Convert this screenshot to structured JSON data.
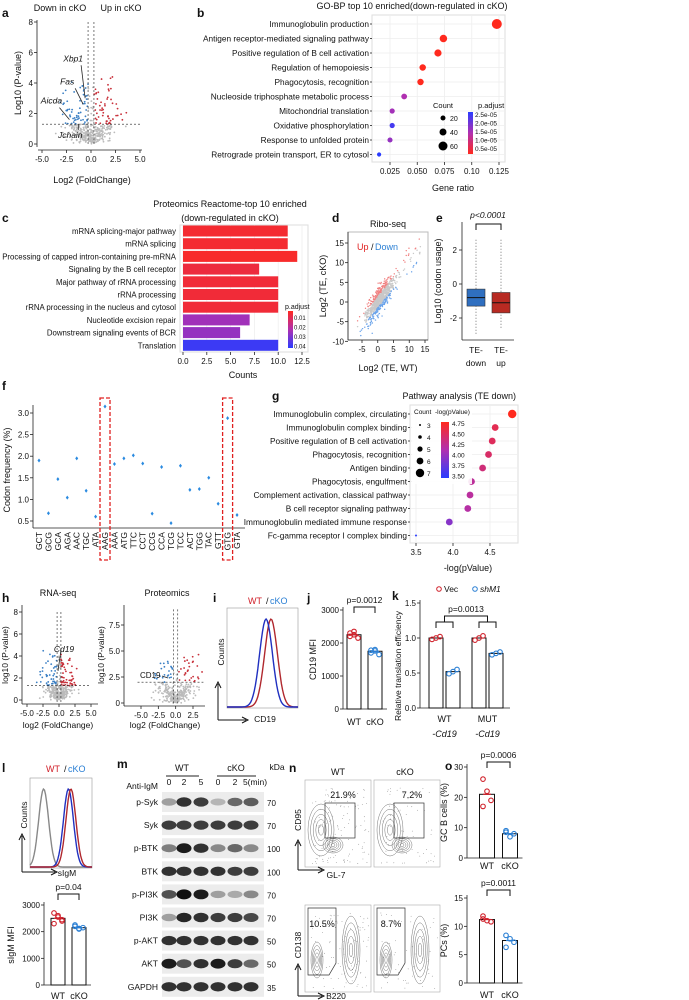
{
  "panel_labels": [
    "a",
    "b",
    "c",
    "d",
    "e",
    "f",
    "g",
    "h",
    "i",
    "j",
    "k",
    "l",
    "m",
    "n",
    "o"
  ],
  "colors": {
    "up": "#c8303a",
    "down": "#3a7fc4",
    "ns": "#bbbbbb",
    "wt": "#d0202a",
    "cko": "#2a7fd4",
    "scale_high": "#ff2a1e",
    "scale_mid": "#b030b0",
    "scale_low": "#2a3cff"
  },
  "chart_data": [
    {
      "panel": "a",
      "type": "scatter",
      "group_labels": [
        "Down in cKO",
        "Up in cKO"
      ],
      "xlabel": "Log2 (FoldChange)",
      "ylabel": "Log10 (P-value)",
      "xlim": [
        -5,
        5
      ],
      "ylim": [
        0,
        8
      ],
      "xticks": [
        "-5.0",
        "-2.5",
        "0.0",
        "2.5",
        "5.0"
      ],
      "yticks": [
        "0",
        "2",
        "4",
        "6",
        "8"
      ],
      "thresholds": {
        "log2fc": [
          -0.3,
          0.3
        ],
        "log10p": 1.3
      },
      "genes": [
        {
          "name": "Xbp1",
          "x": -0.6,
          "y": 3.0
        },
        {
          "name": "Fas",
          "x": -0.8,
          "y": 2.6
        },
        {
          "name": "Aicda",
          "x": -2.2,
          "y": 1.6
        },
        {
          "name": "Jchain",
          "x": -1.3,
          "y": 1.3
        }
      ]
    },
    {
      "panel": "b",
      "type": "scatter",
      "title": "GO-BP top 10 enriched(down-regulated in cKO)",
      "categories": [
        "Immunoglobulin production",
        "Antigen receptor-mediated signaling pathway",
        "Positive regulation of B cell activation",
        "Regulation of hemopoiesis",
        "Phagocytosis, recognition",
        "Nucleoside triphosphate metabolic process",
        "Mitochondrial translation",
        "Oxidative phosphorylation",
        "Response to unfolded protein",
        "Retrograde protein transport, ER to cytosol"
      ],
      "x": [
        0.123,
        0.074,
        0.069,
        0.055,
        0.053,
        0.038,
        0.027,
        0.027,
        0.025,
        0.015
      ],
      "count": [
        70,
        45,
        42,
        35,
        34,
        28,
        22,
        22,
        21,
        12
      ],
      "color_value": [
        3e-06,
        4e-06,
        4.5e-06,
        5e-06,
        5e-06,
        1.5e-05,
        1.6e-05,
        2.3e-05,
        1.7e-05,
        2.6e-05
      ],
      "xlabel": "Gene ratio",
      "xticks": [
        "0.025",
        "0.050",
        "0.075",
        "0.10",
        "0.125"
      ],
      "xlim": [
        0.01,
        0.13
      ],
      "legend": {
        "count_title": "Count",
        "count_levels": [
          "20",
          "40",
          "60"
        ],
        "color_title": "p.adjust",
        "color_ticks": [
          "2.5e-05",
          "2.0e-05",
          "1.5e-05",
          "1.0e-05",
          "0.5e-05"
        ]
      },
      "color_range": [
        5e-06,
        2.5e-05
      ]
    },
    {
      "panel": "c",
      "type": "bar",
      "title_lines": [
        "Proteomics Reactome-top 10 enriched",
        "(down-regulated in cKO)"
      ],
      "categories": [
        "mRNA splicing-major pathway",
        "mRNA splicing",
        "Processing of capped intron-containing pre-mRNA",
        "Signaling by the B cell receptor",
        "Major pathway of rRNA processing",
        "rRNA processing",
        "rRNA processing in the nucleus and cytosol",
        "Nucleotide excision repair",
        "Downstream signaling events of BCR",
        "Translation"
      ],
      "values": [
        11,
        11,
        12,
        8,
        10,
        10,
        10,
        7,
        6,
        10
      ],
      "p_adjust": [
        0.003,
        0.003,
        0.002,
        0.005,
        0.004,
        0.004,
        0.004,
        0.025,
        0.027,
        0.042
      ],
      "xlabel": "Counts",
      "xticks": [
        "0.0",
        "2.5",
        "5.0",
        "7.5",
        "10.0",
        "12.5"
      ],
      "xlim": [
        0,
        12.5
      ],
      "legend": {
        "title": "p.adjust",
        "ticks": [
          "0.01",
          "0.02",
          "0.03",
          "0.04"
        ]
      },
      "color_range": [
        0.0,
        0.045
      ]
    },
    {
      "panel": "d",
      "type": "scatter",
      "title": "Ribo-seq",
      "legend": [
        "Up",
        "/",
        "Down"
      ],
      "xlabel": "Log2 (TE, WT)",
      "ylabel": "Log2 (TE, cKO)",
      "xticks": [
        "-5",
        "0",
        "5",
        "10",
        "15"
      ],
      "yticks": [
        "-10",
        "-5",
        "0",
        "5",
        "10",
        "15"
      ],
      "xlim": [
        -7,
        16
      ],
      "ylim": [
        -10,
        17
      ]
    },
    {
      "panel": "e",
      "type": "box",
      "categories": [
        [
          "TE-",
          "down"
        ],
        [
          "TE-",
          "up"
        ]
      ],
      "ylabel": "Log10 (codon usage)",
      "yticks": [
        "-2",
        "0",
        "2"
      ],
      "annotation": "p<0.0001",
      "boxes": [
        {
          "min": -3.0,
          "q1": -1.3,
          "median": -0.8,
          "q3": -0.3,
          "max": 2.6,
          "color": "#2f6fc0"
        },
        {
          "min": -2.6,
          "q1": -1.7,
          "median": -1.1,
          "q3": -0.5,
          "max": 2.6,
          "color": "#b82a22"
        }
      ]
    },
    {
      "panel": "f",
      "type": "scatter",
      "ylabel": "Codon frequency (%)",
      "yticks": [
        "0.5",
        "1.0",
        "1.5",
        "2.0",
        "2.5",
        "3.0"
      ],
      "ylim": [
        0.3,
        3.2
      ],
      "categories": [
        "GCT",
        "GCG",
        "GCA",
        "AGA",
        "AAC",
        "TGC",
        "ATA",
        "AAG",
        "AAA",
        "ATG",
        "TTC",
        "CCT",
        "CCG",
        "CCA",
        "TCG",
        "TCC",
        "ACT",
        "TGG",
        "TAC",
        "GTT",
        "GTG",
        "GTA"
      ],
      "values": [
        1.9,
        0.68,
        1.47,
        1.04,
        1.95,
        1.2,
        0.6,
        3.15,
        1.82,
        1.95,
        2.02,
        1.83,
        0.67,
        1.75,
        0.45,
        1.78,
        1.22,
        1.24,
        1.5,
        0.9,
        2.88,
        0.64
      ],
      "highlighted": [
        "AAG",
        "GTG"
      ]
    },
    {
      "panel": "g",
      "type": "scatter",
      "title": "Pathway analysis (TE down)",
      "categories": [
        "Immunoglobulin complex, circulating",
        "Immunoglobulin complex binding",
        "Positive regulation of B cell activation",
        "Phagocytosis, recognition",
        "Antigen binding",
        "Phagocytosis, engulfment",
        "Complement activation, classical pathway",
        "B cell receptor signaling pathway",
        "Immunoglobulin mediated immune response",
        "Fc-gamma receptor I complex binding"
      ],
      "x": [
        4.8,
        4.57,
        4.53,
        4.48,
        4.4,
        4.25,
        4.23,
        4.2,
        3.95,
        3.5
      ],
      "count": [
        7,
        6,
        6,
        6,
        6,
        6,
        6,
        6,
        6,
        3
      ],
      "color_value": [
        4.8,
        4.57,
        4.53,
        4.48,
        4.4,
        4.25,
        4.23,
        4.2,
        3.95,
        3.5
      ],
      "xlabel": "-log(pValue)",
      "xticks": [
        "3.5",
        "4.0",
        "4.5"
      ],
      "legend": {
        "count_title": "Count",
        "count_levels": [
          "3",
          "4",
          "5",
          "6",
          "7"
        ],
        "color_title": "-log(pValue)",
        "color_ticks": [
          "4.75",
          "4.50",
          "4.25",
          "4.00",
          "3.75",
          "3.50"
        ]
      },
      "color_range": [
        4.8,
        3.5
      ]
    },
    {
      "panel": "h",
      "type": "scatter",
      "title": "RNA-seq",
      "xlabel": "log2 (FoldChange)",
      "ylabel": "log10 (P-value)",
      "xticks": [
        "-5.0",
        "-2.5",
        "0.0",
        "2.5",
        "5.0"
      ],
      "yticks": [
        "0",
        "2",
        "4",
        "6",
        "8"
      ],
      "xlim": [
        -5,
        5
      ],
      "ylim": [
        0,
        8
      ],
      "thresholds": {
        "log2fc": [
          -0.3,
          0.3
        ],
        "log10p": 1.3
      },
      "gene": "Cd19"
    },
    {
      "panel": "h",
      "type": "scatter",
      "title": "Proteomics",
      "xlabel": "log2 (FoldChange)",
      "ylabel": "log10 (P-value)",
      "xticks": [
        "-5.0",
        "-2.5",
        "0.0",
        "2.5"
      ],
      "yticks": [
        "0",
        "2.5",
        "5.0",
        "7.5"
      ],
      "xlim": [
        -5.5,
        4
      ],
      "ylim": [
        0,
        9
      ],
      "thresholds": {
        "log2fc": [
          -0.3,
          0.3
        ],
        "log10p": 2.0
      },
      "gene": "CD19"
    },
    {
      "panel": "i",
      "type": "line",
      "legend": [
        "WT",
        "/",
        "cKO"
      ],
      "xlabel": "CD19",
      "ylabel": "Counts",
      "series": [
        {
          "name": "WT",
          "mode": 0.62,
          "color": "#b0282e"
        },
        {
          "name": "cKO",
          "mode": 0.55,
          "color": "#2030c0"
        }
      ]
    },
    {
      "panel": "j",
      "type": "bar",
      "ylabel": "CD19 MFI",
      "categories": [
        "WT",
        "cKO"
      ],
      "values": [
        2250,
        1750
      ],
      "points": [
        [
          2200,
          2350,
          2150,
          2300,
          2250
        ],
        [
          1700,
          1800,
          1650,
          1780,
          1760
        ]
      ],
      "yticks": [
        "0",
        "1000",
        "2000",
        "3000"
      ],
      "ylim": [
        0,
        3000
      ],
      "p_value": "p=0.0012"
    },
    {
      "panel": "k",
      "type": "bar",
      "legend": [
        "Vec",
        "shM1"
      ],
      "ylabel": "Relative translation efficiency",
      "groups": [
        [
          "WT",
          "-Cd19"
        ],
        [
          "MUT",
          "-Cd19"
        ]
      ],
      "values": [
        [
          1.0,
          0.52
        ],
        [
          1.0,
          0.78
        ]
      ],
      "points": [
        [
          [
            0.98,
            1.0,
            1.02
          ],
          [
            0.49,
            0.52,
            0.55
          ]
        ],
        [
          [
            0.97,
            1.0,
            1.03
          ],
          [
            0.76,
            0.78,
            0.8
          ]
        ]
      ],
      "yticks": [
        "0.0",
        "0.5",
        "1.0",
        "1.5"
      ],
      "ylim": [
        0,
        1.5
      ],
      "p_value": "p=0.0013"
    },
    {
      "panel": "l",
      "type": "line",
      "legend": [
        "WT",
        "/",
        "cKO"
      ],
      "xlabel": "sIgM",
      "ylabel": "Counts",
      "series": [
        {
          "name": "isotype",
          "mode": 0.22,
          "color": "#888888"
        },
        {
          "name": "cKO",
          "mode": 0.62,
          "color": "#2030c0"
        },
        {
          "name": "WT",
          "mode": 0.66,
          "color": "#b0282e"
        }
      ]
    },
    {
      "panel": "l",
      "type": "bar",
      "ylabel": "sIgM MFI",
      "categories": [
        "WT",
        "cKO"
      ],
      "values": [
        2500,
        2150
      ],
      "points": [
        [
          2700,
          2550,
          2450,
          2300,
          2600,
          2400
        ],
        [
          2200,
          2100,
          2150,
          2250,
          2120
        ]
      ],
      "yticks": [
        "0",
        "1000",
        "2000",
        "3000"
      ],
      "ylim": [
        0,
        3000
      ],
      "p_value": "p=0.04"
    },
    {
      "panel": "m",
      "type": "table",
      "conditions": [
        "WT",
        "cKO"
      ],
      "treatment": "Anti-IgM",
      "timepoints": [
        "0",
        "2",
        "5",
        "0",
        "2",
        "5(min)"
      ],
      "kda_label": "kDa",
      "rows": [
        {
          "protein": "p-Syk",
          "kda": "70",
          "intensity": [
            0.35,
            0.85,
            0.8,
            0.25,
            0.6,
            0.65
          ]
        },
        {
          "protein": "Syk",
          "kda": "70",
          "intensity": [
            0.8,
            0.8,
            0.8,
            0.8,
            0.8,
            0.8
          ]
        },
        {
          "protein": "p-BTK",
          "kda": "100",
          "intensity": [
            0.5,
            0.95,
            0.85,
            0.45,
            0.6,
            0.45
          ]
        },
        {
          "protein": "BTK",
          "kda": "100",
          "intensity": [
            0.85,
            0.85,
            0.85,
            0.85,
            0.8,
            0.8
          ]
        },
        {
          "protein": "p-PI3K",
          "kda": "70",
          "intensity": [
            0.7,
            1.0,
            0.95,
            0.35,
            0.3,
            0.45
          ]
        },
        {
          "protein": "PI3K",
          "kda": "70",
          "intensity": [
            0.35,
            0.9,
            0.85,
            0.8,
            0.8,
            0.75
          ]
        },
        {
          "protein": "p-AKT",
          "kda": "50",
          "intensity": [
            0.85,
            0.85,
            0.85,
            0.85,
            0.85,
            0.85
          ]
        },
        {
          "protein": "AKT",
          "kda": "50",
          "intensity": [
            0.95,
            0.7,
            0.85,
            0.95,
            0.8,
            0.6
          ]
        },
        {
          "protein": "GAPDH",
          "kda": "35",
          "intensity": [
            0.85,
            0.85,
            0.85,
            0.85,
            0.85,
            0.85
          ]
        }
      ]
    },
    {
      "panel": "n",
      "type": "scatter",
      "columns": [
        "WT",
        "cKO"
      ],
      "top": {
        "yaxis": "CD95",
        "xaxis": "GL-7",
        "percent": [
          "21.9%",
          "7.2%"
        ]
      },
      "bottom": {
        "yaxis": "CD138",
        "xaxis": "B220",
        "percent": [
          "10.5%",
          "8.7%"
        ]
      }
    },
    {
      "panel": "o",
      "type": "bar",
      "ylabel": "GC B cells (%)",
      "categories": [
        "WT",
        "cKO"
      ],
      "values": [
        21,
        8
      ],
      "points": [
        [
          26,
          22,
          19,
          17
        ],
        [
          8.5,
          7,
          8,
          9
        ]
      ],
      "yticks": [
        "0",
        "10",
        "20",
        "30"
      ],
      "ylim": [
        0,
        30
      ],
      "p_value": "p=0.0006"
    },
    {
      "panel": "o",
      "type": "bar",
      "ylabel": "PCs (%)",
      "categories": [
        "WT",
        "cKO"
      ],
      "values": [
        11.2,
        7.5
      ],
      "points": [
        [
          11.8,
          11,
          10.8,
          11.3
        ],
        [
          8.4,
          7.8,
          7.2,
          6.3
        ]
      ],
      "yticks": [
        "0",
        "5",
        "10",
        "15"
      ],
      "ylim": [
        0,
        15
      ],
      "p_value": "p=0.0011"
    }
  ]
}
